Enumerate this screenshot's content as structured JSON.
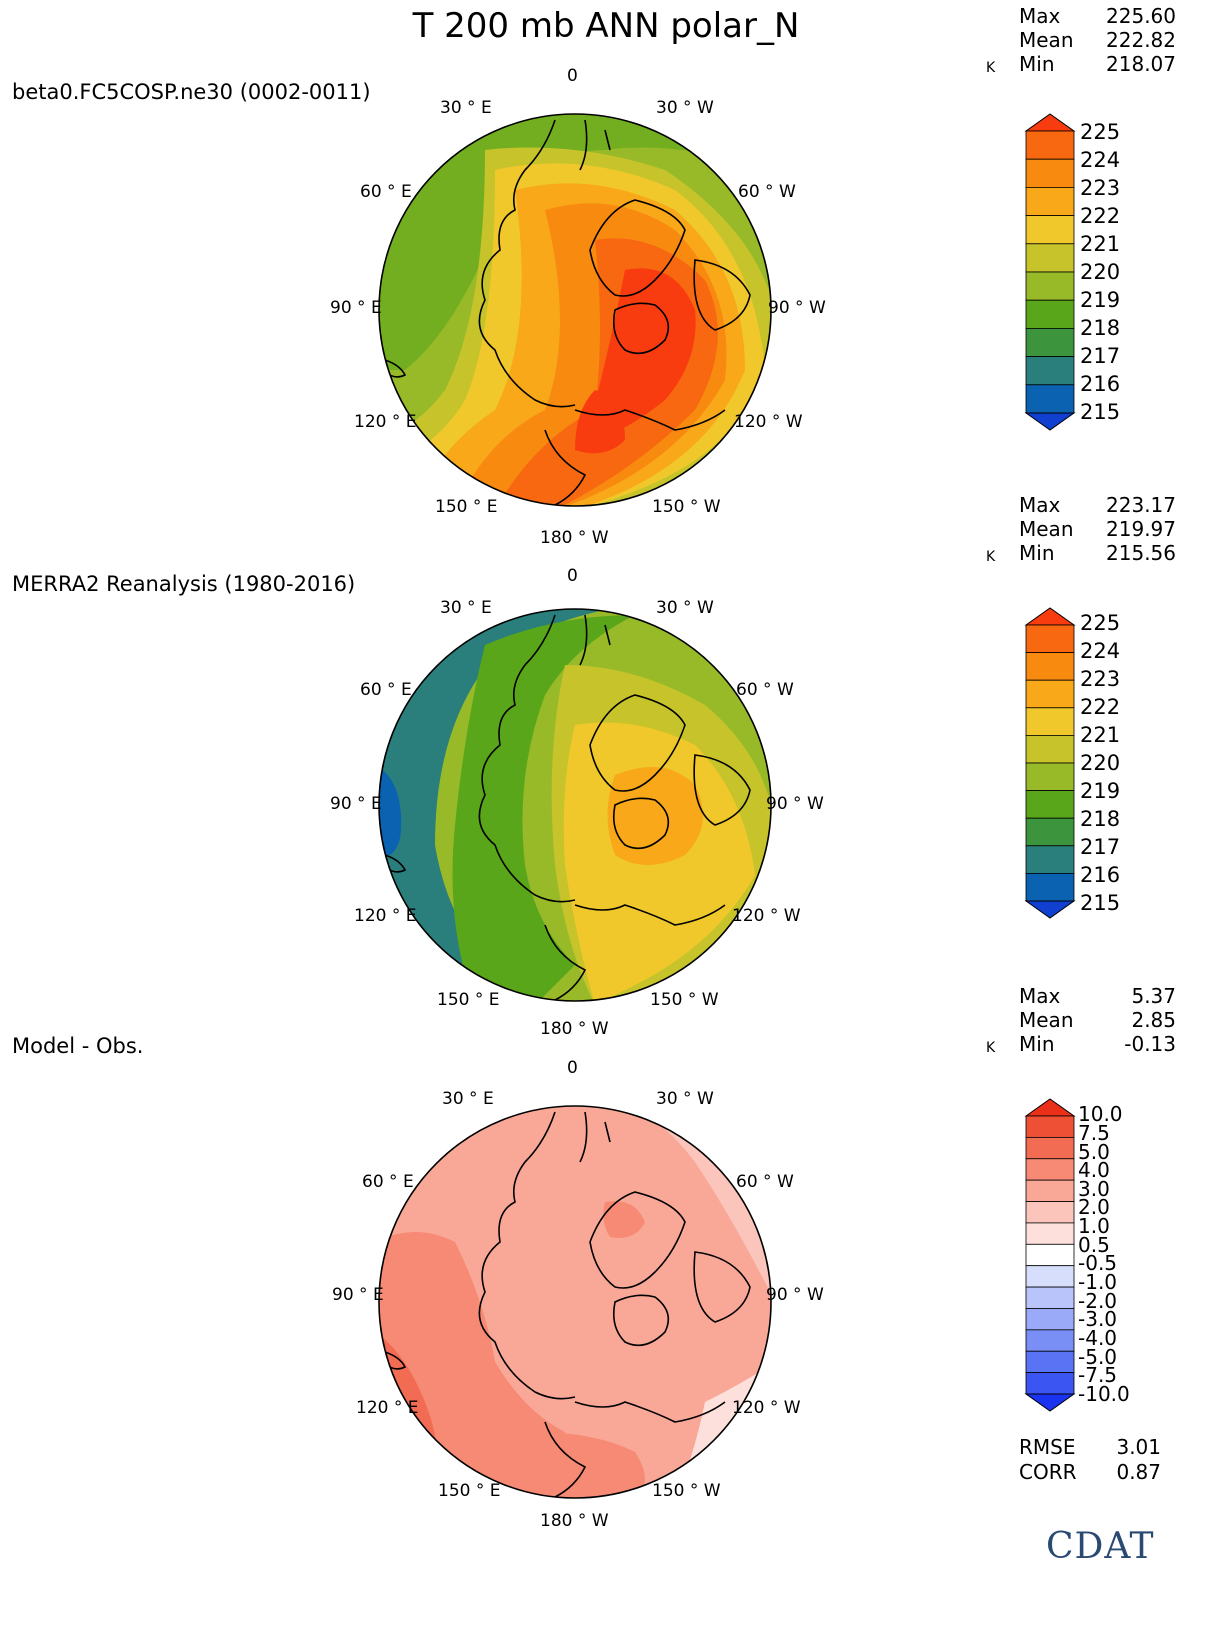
{
  "title": "T 200 mb ANN polar_N",
  "units": "K",
  "longitude_labels": {
    "top": "0",
    "upper_left": "30 ° E",
    "upper_right": "30 ° W",
    "left_upper": "60 ° E",
    "right_upper": "60 ° W",
    "left": "90 ° E",
    "right": "90 ° W",
    "left_lower": "120 ° E",
    "right_lower": "120 ° W",
    "lower_left": "150 ° E",
    "lower_right": "150 ° W",
    "bottom": "180 ° W"
  },
  "panels": [
    {
      "label": "beta0.FC5COSP.ne30 (0002-0011)",
      "stats": {
        "max_label": "Max",
        "max": "225.60",
        "mean_label": "Mean",
        "mean": "222.82",
        "min_label": "Min",
        "min": "218.07"
      },
      "colorbar": [
        "225",
        "224",
        "223",
        "222",
        "221",
        "220",
        "219",
        "218",
        "217",
        "216",
        "215"
      ]
    },
    {
      "label": "MERRA2 Reanalysis (1980-2016)",
      "stats": {
        "max_label": "Max",
        "max": "223.17",
        "mean_label": "Mean",
        "mean": "219.97",
        "min_label": "Min",
        "min": "215.56"
      },
      "colorbar": [
        "225",
        "224",
        "223",
        "222",
        "221",
        "220",
        "219",
        "218",
        "217",
        "216",
        "215"
      ]
    },
    {
      "label": "Model - Obs.",
      "stats": {
        "max_label": "Max",
        "max": "5.37",
        "mean_label": "Mean",
        "mean": "2.85",
        "min_label": "Min",
        "min": "-0.13"
      },
      "colorbar": [
        "10.0",
        "7.5",
        "5.0",
        "4.0",
        "3.0",
        "2.0",
        "1.0",
        "0.5",
        "-0.5",
        "-1.0",
        "-2.0",
        "-3.0",
        "-4.0",
        "-5.0",
        "-7.5",
        "-10.0"
      ]
    }
  ],
  "metrics": {
    "rmse_label": "RMSE",
    "rmse": "3.01",
    "corr_label": "CORR",
    "corr": "0.87"
  },
  "logo_text": "CDAT",
  "colors": {
    "temp_scale": [
      "#1040d0",
      "#0a62b0",
      "#2a7f7d",
      "#3c943c",
      "#5aa61a",
      "#98ba28",
      "#c6c42a",
      "#f0c82c",
      "#f8a818",
      "#f88a10",
      "#f86810",
      "#f83c10"
    ],
    "diff_scale": [
      "#1a33f0",
      "#3b55f2",
      "#5a73f4",
      "#7a8ff6",
      "#9aaaf8",
      "#b9c4fa",
      "#d6defc",
      "#ffffff",
      "#fde0dc",
      "#fcc5bc",
      "#f9a898",
      "#f68a74",
      "#f26c54",
      "#ee5036",
      "#ea3018"
    ]
  }
}
